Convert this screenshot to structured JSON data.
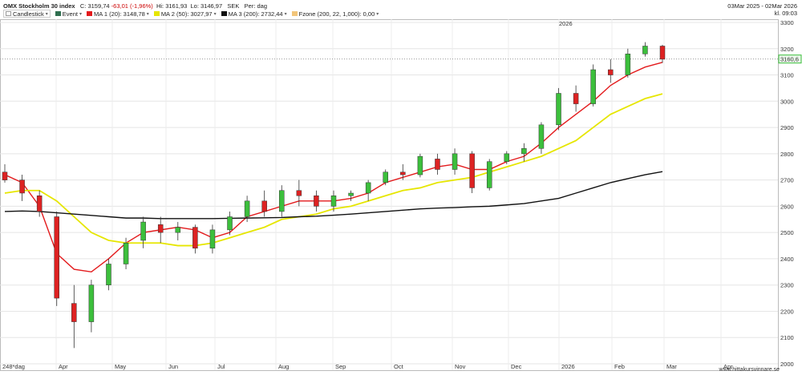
{
  "header": {
    "title": "OMX Stockholm 30 index",
    "close": "C: 3159,74",
    "change": "-63,01 (-1,96%)",
    "high": "Hi: 3161,93",
    "low": "Lo: 3146,97",
    "currency": "SEK",
    "period": "Per: dag",
    "date_range": "03Mar 2025 - 02Mar 2026",
    "time": "kl. 09:03"
  },
  "legend": [
    {
      "label": "Candlestick",
      "color": "#ffffff"
    },
    {
      "label": "Event",
      "color": "#2f6f4f"
    },
    {
      "label": "MA 1 (20): 3148,78",
      "color": "#e31a1c"
    },
    {
      "label": "MA 2 (50): 3027,97",
      "color": "#e6e600"
    },
    {
      "label": "MA 3 (200): 2732,44",
      "color": "#111111"
    },
    {
      "label": "Fzone (200, 22, 1,000): 0,00",
      "color": "#f2c57a"
    }
  ],
  "footer": {
    "site": "www.hittakursvinnare.se"
  },
  "chart_data": {
    "type": "candlestick",
    "title": "OMX Stockholm 30 index",
    "last_price_label": "3160,6",
    "y_axis": {
      "side": "right",
      "min": 2000,
      "max": 3300,
      "ticks": [
        2000,
        2100,
        2200,
        2300,
        2400,
        2500,
        2600,
        2700,
        2800,
        2900,
        3000,
        3100,
        3200,
        3300
      ]
    },
    "x_axis": {
      "start_label": "248*dag",
      "months": [
        "Apr",
        "May",
        "Jun",
        "Jul",
        "Aug",
        "Sep",
        "Oct",
        "Nov",
        "Dec",
        "2026",
        "Feb",
        "Mar",
        "Apr"
      ],
      "year_marker": "2026"
    },
    "candles": [
      {
        "x": "Mar 2025",
        "o": 2730,
        "h": 2760,
        "l": 2690,
        "c": 2700
      },
      {
        "x": "Mid Mar",
        "o": 2700,
        "h": 2720,
        "l": 2620,
        "c": 2650
      },
      {
        "x": "Late Mar",
        "o": 2640,
        "h": 2660,
        "l": 2560,
        "c": 2580
      },
      {
        "x": "Early Apr",
        "o": 2560,
        "h": 2580,
        "l": 2220,
        "c": 2250
      },
      {
        "x": "Apr low",
        "o": 2230,
        "h": 2300,
        "l": 2060,
        "c": 2160
      },
      {
        "x": "Mid Apr",
        "o": 2160,
        "h": 2320,
        "l": 2120,
        "c": 2300
      },
      {
        "x": "Late Apr",
        "o": 2300,
        "h": 2400,
        "l": 2280,
        "c": 2380
      },
      {
        "x": "Early May",
        "o": 2380,
        "h": 2480,
        "l": 2360,
        "c": 2460
      },
      {
        "x": "Mid May",
        "o": 2470,
        "h": 2560,
        "l": 2440,
        "c": 2540
      },
      {
        "x": "Late May",
        "o": 2530,
        "h": 2560,
        "l": 2460,
        "c": 2500
      },
      {
        "x": "Early Jun",
        "o": 2500,
        "h": 2540,
        "l": 2470,
        "c": 2520
      },
      {
        "x": "Mid Jun",
        "o": 2520,
        "h": 2530,
        "l": 2420,
        "c": 2440
      },
      {
        "x": "Late Jun",
        "o": 2440,
        "h": 2530,
        "l": 2420,
        "c": 2510
      },
      {
        "x": "Early Jul",
        "o": 2510,
        "h": 2580,
        "l": 2490,
        "c": 2560
      },
      {
        "x": "Mid Jul",
        "o": 2560,
        "h": 2640,
        "l": 2540,
        "c": 2620
      },
      {
        "x": "Late Jul",
        "o": 2620,
        "h": 2660,
        "l": 2560,
        "c": 2580
      },
      {
        "x": "Early Aug",
        "o": 2580,
        "h": 2680,
        "l": 2560,
        "c": 2660
      },
      {
        "x": "Mid Aug",
        "o": 2660,
        "h": 2700,
        "l": 2600,
        "c": 2640
      },
      {
        "x": "Late Aug",
        "o": 2640,
        "h": 2660,
        "l": 2580,
        "c": 2600
      },
      {
        "x": "Early Sep",
        "o": 2600,
        "h": 2660,
        "l": 2580,
        "c": 2640
      },
      {
        "x": "Mid Sep",
        "o": 2640,
        "h": 2660,
        "l": 2620,
        "c": 2650
      },
      {
        "x": "Late Sep",
        "o": 2650,
        "h": 2700,
        "l": 2620,
        "c": 2690
      },
      {
        "x": "Early Oct",
        "o": 2690,
        "h": 2740,
        "l": 2680,
        "c": 2730
      },
      {
        "x": "Mid Oct",
        "o": 2730,
        "h": 2760,
        "l": 2700,
        "c": 2720
      },
      {
        "x": "Late Oct",
        "o": 2720,
        "h": 2800,
        "l": 2710,
        "c": 2790
      },
      {
        "x": "Early Nov",
        "o": 2780,
        "h": 2800,
        "l": 2720,
        "c": 2740
      },
      {
        "x": "Mid Nov",
        "o": 2740,
        "h": 2820,
        "l": 2720,
        "c": 2800
      },
      {
        "x": "Late Nov",
        "o": 2800,
        "h": 2810,
        "l": 2650,
        "c": 2670
      },
      {
        "x": "Early Dec",
        "o": 2670,
        "h": 2780,
        "l": 2660,
        "c": 2770
      },
      {
        "x": "Mid Dec",
        "o": 2770,
        "h": 2810,
        "l": 2760,
        "c": 2800
      },
      {
        "x": "Late Dec",
        "o": 2800,
        "h": 2840,
        "l": 2770,
        "c": 2820
      },
      {
        "x": "Early Jan",
        "o": 2820,
        "h": 2920,
        "l": 2800,
        "c": 2910
      },
      {
        "x": "Mid Jan",
        "o": 2910,
        "h": 3050,
        "l": 2890,
        "c": 3030
      },
      {
        "x": "Late Jan",
        "o": 3030,
        "h": 3060,
        "l": 2960,
        "c": 2990
      },
      {
        "x": "Early Feb",
        "o": 2990,
        "h": 3140,
        "l": 2980,
        "c": 3120
      },
      {
        "x": "Mid Feb",
        "o": 3120,
        "h": 3160,
        "l": 3070,
        "c": 3100
      },
      {
        "x": "Late Feb",
        "o": 3100,
        "h": 3200,
        "l": 3090,
        "c": 3180
      },
      {
        "x": "End Feb",
        "o": 3180,
        "h": 3225,
        "l": 3170,
        "c": 3210
      },
      {
        "x": "Mar 2026",
        "o": 3210,
        "h": 3215,
        "l": 3146,
        "c": 3160
      }
    ],
    "series": [
      {
        "name": "MA 1 (20)",
        "color": "#e31a1c",
        "values": [
          2720,
          2690,
          2600,
          2420,
          2360,
          2350,
          2400,
          2460,
          2500,
          2510,
          2520,
          2510,
          2480,
          2500,
          2560,
          2580,
          2600,
          2620,
          2620,
          2620,
          2630,
          2650,
          2690,
          2710,
          2730,
          2750,
          2760,
          2740,
          2740,
          2770,
          2790,
          2840,
          2900,
          2950,
          3000,
          3060,
          3100,
          3130,
          3148
        ]
      },
      {
        "name": "MA 2 (50)",
        "color": "#e6e600",
        "values": [
          2650,
          2660,
          2660,
          2620,
          2560,
          2500,
          2470,
          2460,
          2460,
          2460,
          2450,
          2450,
          2460,
          2480,
          2500,
          2520,
          2550,
          2560,
          2570,
          2590,
          2600,
          2620,
          2640,
          2660,
          2670,
          2690,
          2700,
          2710,
          2730,
          2750,
          2770,
          2790,
          2820,
          2850,
          2900,
          2950,
          2980,
          3010,
          3028
        ]
      },
      {
        "name": "MA 3 (200)",
        "color": "#111111",
        "values": [
          2580,
          2582,
          2580,
          2575,
          2570,
          2565,
          2560,
          2555,
          2555,
          2553,
          2553,
          2553,
          2553,
          2554,
          2555,
          2556,
          2557,
          2560,
          2562,
          2566,
          2570,
          2575,
          2580,
          2585,
          2590,
          2593,
          2595,
          2598,
          2600,
          2605,
          2610,
          2620,
          2630,
          2650,
          2670,
          2690,
          2705,
          2720,
          2732
        ]
      }
    ]
  }
}
